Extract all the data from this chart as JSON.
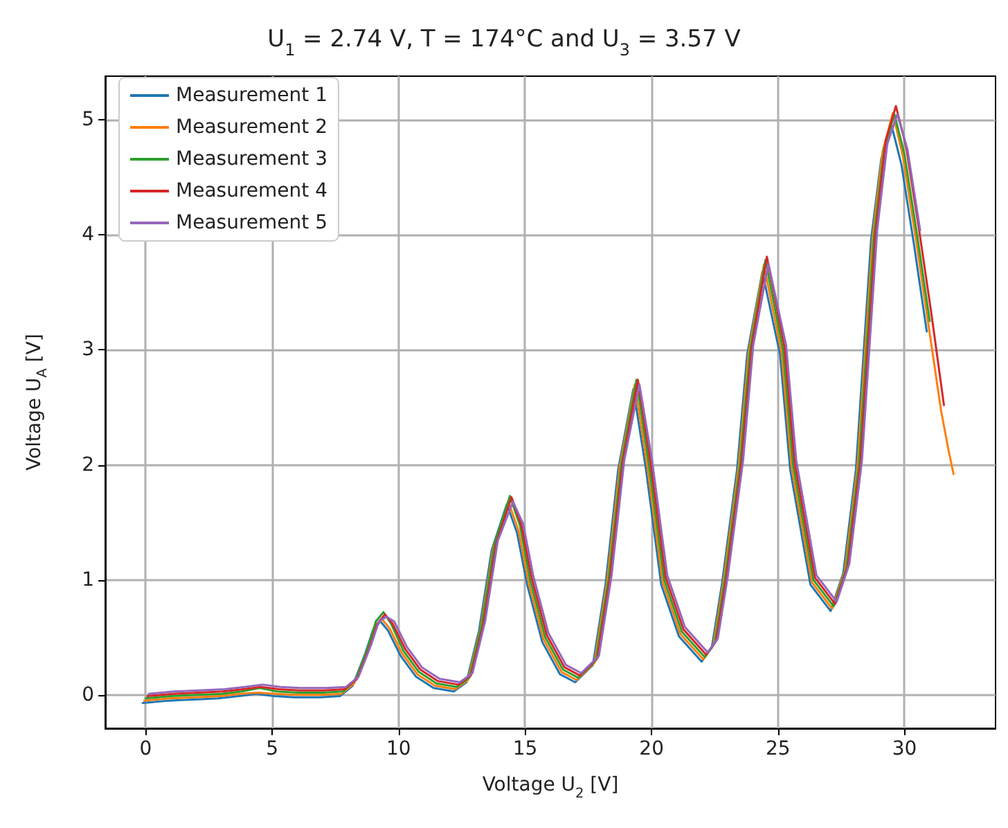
{
  "chart_data": {
    "type": "line",
    "title": "U$_{1}$ = 2.74 V, T = 174°C and U$_{3}$ = 3.57 V",
    "xlabel": "Voltage U$_{2}$ [V]",
    "ylabel": "Voltage U$_{A}$ [V]",
    "series": [
      {
        "name": "Measurement 1",
        "color": "#1f77b4",
        "x": [
          -0.12,
          0.88,
          1.88,
          2.88,
          3.68,
          4.38,
          5.08,
          5.88,
          6.88,
          7.68,
          8.18,
          8.68,
          8.98,
          9.28,
          9.58,
          10.08,
          10.68,
          11.38,
          12.18,
          12.68,
          13.18,
          13.68,
          14.28,
          14.68,
          15.08,
          15.68,
          16.38,
          16.98,
          17.68,
          18.18,
          18.68,
          19.28,
          19.78,
          20.38,
          21.08,
          21.98,
          22.38,
          22.78,
          23.38,
          23.78,
          24.38,
          25.08,
          25.48,
          26.28,
          27.08,
          27.58,
          28.08,
          28.38,
          28.68,
          29.08,
          29.48,
          29.88,
          30.38,
          30.88
        ],
        "values": [
          -0.07,
          -0.05,
          -0.04,
          -0.03,
          -0.01,
          0.01,
          -0.01,
          -0.02,
          -0.02,
          -0.01,
          0.08,
          0.36,
          0.56,
          0.64,
          0.56,
          0.34,
          0.16,
          0.06,
          0.03,
          0.11,
          0.56,
          1.26,
          1.66,
          1.41,
          0.96,
          0.46,
          0.18,
          0.11,
          0.26,
          0.96,
          1.96,
          2.66,
          1.96,
          0.96,
          0.51,
          0.29,
          0.41,
          0.96,
          1.96,
          2.96,
          3.68,
          2.96,
          1.96,
          0.96,
          0.73,
          1.06,
          1.96,
          2.96,
          3.96,
          4.66,
          4.96,
          4.61,
          3.91,
          3.16
        ]
      },
      {
        "name": "Measurement 2",
        "color": "#ff7f0e",
        "x": [
          -0.06,
          0.94,
          1.94,
          2.94,
          3.74,
          4.44,
          5.14,
          5.94,
          6.94,
          7.74,
          8.24,
          8.74,
          9.04,
          9.34,
          9.64,
          10.14,
          10.74,
          11.44,
          12.24,
          12.74,
          13.24,
          13.74,
          14.34,
          14.74,
          15.14,
          15.74,
          16.44,
          17.04,
          17.74,
          18.24,
          18.74,
          19.34,
          19.84,
          20.44,
          21.14,
          22.04,
          22.44,
          22.84,
          23.44,
          23.84,
          24.44,
          25.14,
          25.54,
          26.34,
          27.14,
          27.64,
          28.14,
          28.44,
          28.74,
          29.14,
          29.54,
          29.94,
          30.44,
          30.94,
          31.44,
          31.74,
          31.94
        ],
        "values": [
          -0.05,
          -0.03,
          -0.02,
          -0.01,
          0.01,
          0.02,
          0.01,
          0,
          0,
          0.01,
          0.1,
          0.38,
          0.58,
          0.66,
          0.58,
          0.36,
          0.18,
          0.08,
          0.05,
          0.13,
          0.58,
          1.28,
          1.68,
          1.43,
          0.98,
          0.48,
          0.2,
          0.13,
          0.28,
          0.98,
          1.98,
          2.7,
          1.98,
          0.98,
          0.53,
          0.31,
          0.43,
          0.98,
          1.98,
          2.98,
          3.74,
          2.98,
          1.98,
          0.98,
          0.75,
          1.08,
          1.98,
          2.98,
          3.98,
          4.73,
          5.06,
          4.68,
          3.98,
          3.23,
          2.48,
          2.13,
          1.92
        ]
      },
      {
        "name": "Measurement 3",
        "color": "#2ca02c",
        "x": [
          0,
          1,
          2,
          3,
          3.8,
          4.5,
          5.2,
          6,
          7,
          7.8,
          8.3,
          8.8,
          9.1,
          9.4,
          9.7,
          10.2,
          10.8,
          11.5,
          12.3,
          12.8,
          13.3,
          13.8,
          14.4,
          14.8,
          15.2,
          15.8,
          16.5,
          17.1,
          17.8,
          18.3,
          18.8,
          19.4,
          19.9,
          20.5,
          21.2,
          22.1,
          22.5,
          22.9,
          23.5,
          23.9,
          24.5,
          25.2,
          25.6,
          26.4,
          27.2,
          27.7,
          28.2,
          28.5,
          28.8,
          29.2,
          29.6,
          30.0,
          30.5,
          31.0
        ],
        "values": [
          -0.03,
          -0.01,
          0,
          0.01,
          0.03,
          0.06,
          0.03,
          0.02,
          0.02,
          0.03,
          0.13,
          0.42,
          0.64,
          0.72,
          0.62,
          0.38,
          0.2,
          0.1,
          0.07,
          0.15,
          0.62,
          1.32,
          1.73,
          1.47,
          1.0,
          0.5,
          0.22,
          0.15,
          0.3,
          1.0,
          2.0,
          2.74,
          2.0,
          1.0,
          0.55,
          0.33,
          0.45,
          1.0,
          2.0,
          3.0,
          3.78,
          3.0,
          2.0,
          1.0,
          0.77,
          1.1,
          2.0,
          3.0,
          4.0,
          4.75,
          5.05,
          4.7,
          4.0,
          3.25
        ]
      },
      {
        "name": "Measurement 4",
        "color": "#d62728",
        "x": [
          0.06,
          1.06,
          2.06,
          3.06,
          3.86,
          4.56,
          5.26,
          6.06,
          7.06,
          7.86,
          8.36,
          8.86,
          9.16,
          9.46,
          9.76,
          10.26,
          10.86,
          11.56,
          12.36,
          12.86,
          13.36,
          13.86,
          14.46,
          14.86,
          15.26,
          15.86,
          16.56,
          17.16,
          17.86,
          18.36,
          18.86,
          19.46,
          19.96,
          20.56,
          21.26,
          22.16,
          22.56,
          22.96,
          23.56,
          23.96,
          24.56,
          25.26,
          25.66,
          26.46,
          27.26,
          27.76,
          28.26,
          28.56,
          28.86,
          29.26,
          29.66,
          30.06,
          30.56,
          31.06,
          31.56
        ],
        "values": [
          -0.01,
          0.01,
          0.02,
          0.03,
          0.05,
          0.07,
          0.05,
          0.04,
          0.04,
          0.05,
          0.14,
          0.42,
          0.62,
          0.7,
          0.62,
          0.4,
          0.22,
          0.12,
          0.09,
          0.17,
          0.62,
          1.32,
          1.72,
          1.47,
          1.02,
          0.52,
          0.24,
          0.17,
          0.32,
          1.02,
          2.02,
          2.74,
          2.02,
          1.02,
          0.57,
          0.35,
          0.47,
          1.02,
          2.02,
          3.02,
          3.81,
          3.02,
          2.02,
          1.02,
          0.79,
          1.12,
          2.02,
          3.02,
          4.02,
          4.82,
          5.12,
          4.77,
          4.07,
          3.32,
          2.52
        ]
      },
      {
        "name": "Measurement 5",
        "color": "#9467bd",
        "x": [
          0.12,
          1.12,
          2.12,
          3.12,
          3.92,
          4.62,
          5.32,
          6.12,
          7.12,
          7.92,
          8.42,
          8.92,
          9.22,
          9.52,
          9.82,
          10.32,
          10.92,
          11.62,
          12.42,
          12.92,
          13.42,
          13.92,
          14.52,
          14.92,
          15.32,
          15.92,
          16.62,
          17.22,
          17.92,
          18.42,
          18.92,
          19.52,
          20.02,
          20.62,
          21.32,
          22.22,
          22.62,
          23.02,
          23.62,
          24.02,
          24.62,
          25.32,
          25.72,
          26.52,
          27.32,
          27.82,
          28.32,
          28.62,
          28.92,
          29.32,
          29.72,
          30.12,
          30.62
        ],
        "values": [
          0.01,
          0.03,
          0.04,
          0.05,
          0.07,
          0.09,
          0.07,
          0.06,
          0.06,
          0.07,
          0.16,
          0.44,
          0.64,
          0.68,
          0.64,
          0.42,
          0.24,
          0.14,
          0.11,
          0.19,
          0.64,
          1.34,
          1.68,
          1.49,
          1.04,
          0.54,
          0.26,
          0.19,
          0.34,
          1.04,
          2.04,
          2.7,
          2.04,
          1.04,
          0.59,
          0.37,
          0.49,
          1.04,
          2.04,
          3.04,
          3.75,
          3.04,
          2.04,
          1.04,
          0.81,
          1.14,
          2.04,
          3.04,
          4.04,
          4.79,
          5.05,
          4.74,
          4.04
        ]
      }
    ],
    "xlim": [
      -1.6,
      33.6
    ],
    "xticks": [
      0,
      5,
      10,
      15,
      20,
      25,
      30
    ],
    "ylim": [
      -0.29,
      5.38
    ],
    "yticks": [
      0,
      1,
      2,
      3,
      4,
      5
    ],
    "grid": true,
    "legend": "top left",
    "marker": "none",
    "line_style": "solid"
  }
}
